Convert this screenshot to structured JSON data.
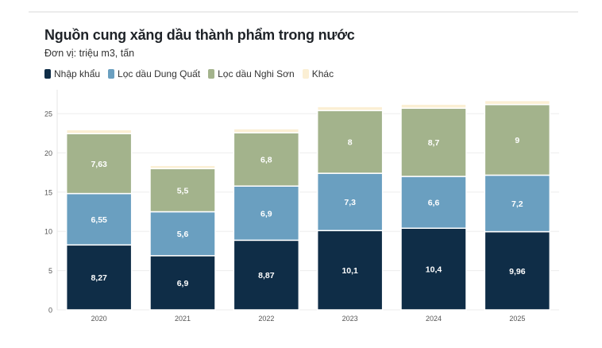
{
  "chart_data": {
    "type": "bar",
    "stacked": true,
    "title": "Nguồn cung xăng dầu thành phẩm trong nước",
    "subtitle": "Đơn vị: triệu m3, tấn",
    "categories": [
      "2020",
      "2021",
      "2022",
      "2023",
      "2024",
      "2025"
    ],
    "series": [
      {
        "name": "Nhập khẩu",
        "color": "#0f2d47",
        "values": [
          8.27,
          6.9,
          8.87,
          10.1,
          10.4,
          9.96
        ],
        "labels": [
          "8,27",
          "6,9",
          "8,87",
          "10,1",
          "10,4",
          "9,96"
        ]
      },
      {
        "name": "Lọc dầu Dung Quất",
        "color": "#6a9fc0",
        "values": [
          6.55,
          5.6,
          6.9,
          7.3,
          6.6,
          7.2
        ],
        "labels": [
          "6,55",
          "5,6",
          "6,9",
          "7,3",
          "6,6",
          "7,2"
        ]
      },
      {
        "name": "Lọc dầu Nghi Sơn",
        "color": "#a3b38c",
        "values": [
          7.63,
          5.5,
          6.8,
          8,
          8.7,
          9
        ],
        "labels": [
          "7,63",
          "5,5",
          "6,8",
          "8",
          "8,7",
          "9"
        ]
      },
      {
        "name": "Khác",
        "color": "#fbefd4",
        "values": [
          0.5,
          0.4,
          0.5,
          0.5,
          0.5,
          0.5
        ],
        "labels": [
          "",
          "",
          "",
          "",
          "",
          ""
        ]
      }
    ],
    "ylim": [
      0,
      25
    ],
    "yticks": [
      "0",
      "5",
      "10",
      "15",
      "20",
      "25"
    ],
    "grid": true,
    "legend": "top-left"
  }
}
